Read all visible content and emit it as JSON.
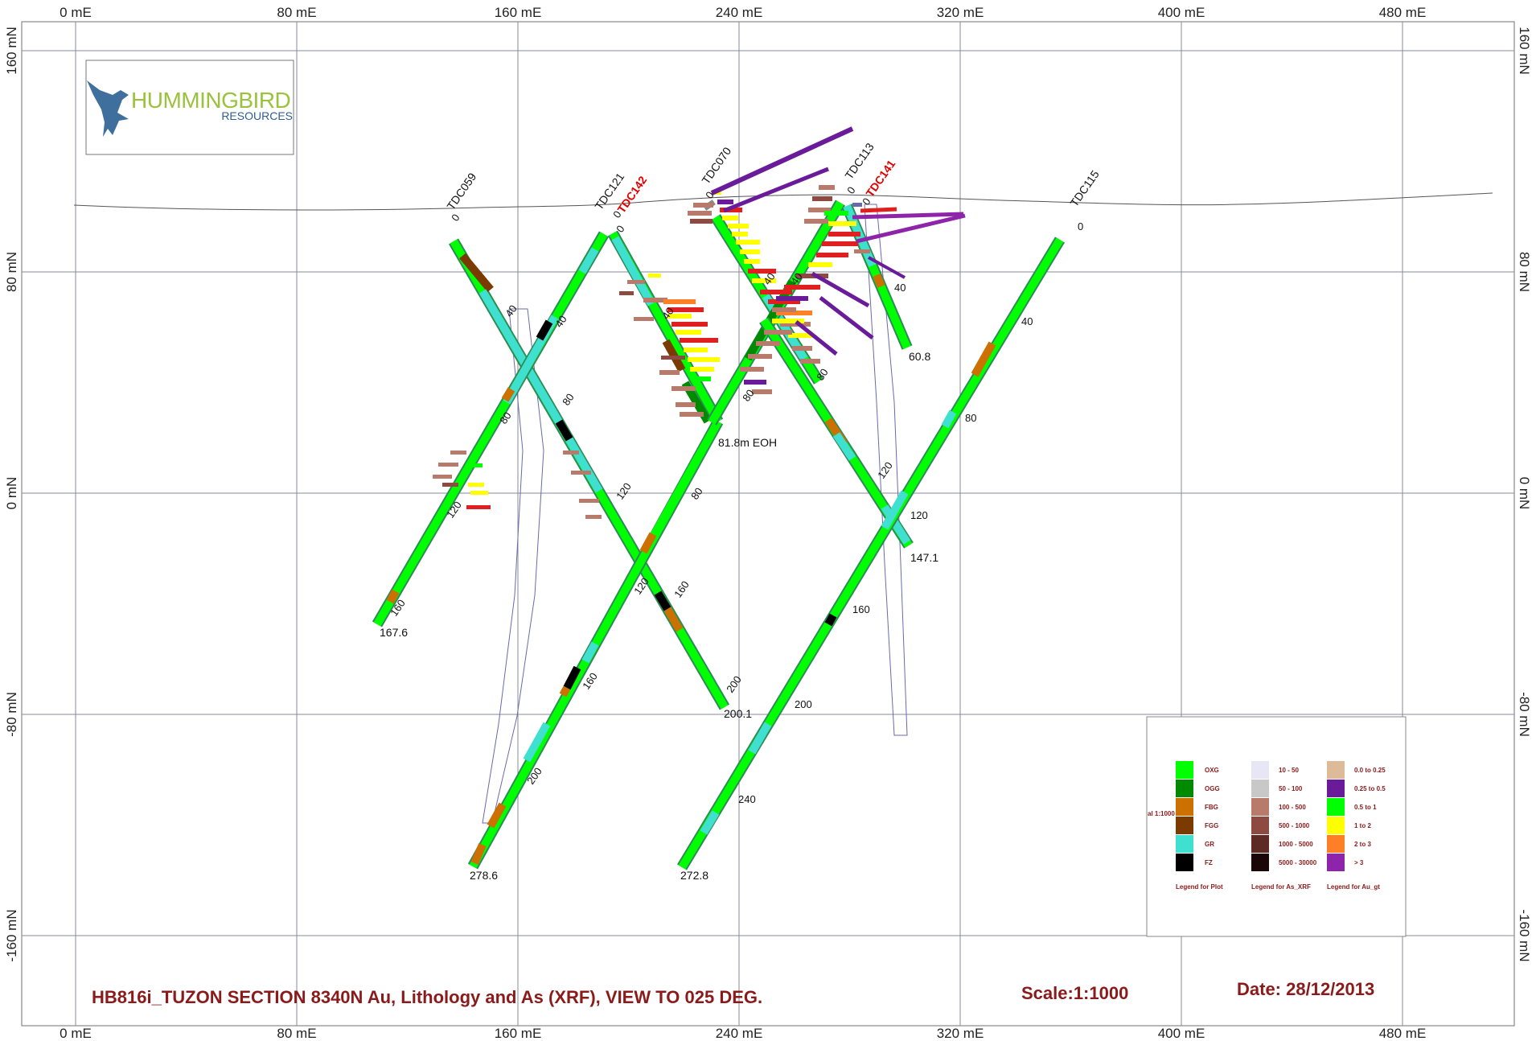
{
  "axes": {
    "x_labels": [
      "0 mE",
      "80 mE",
      "160 mE",
      "240 mE",
      "320 mE",
      "400 mE",
      "480 mE"
    ],
    "y_labels": [
      "160 mN",
      "80 mN",
      "0 mN",
      "-80 mN",
      "-160 mN"
    ]
  },
  "logo": {
    "brand": "HUMMINGBIRD",
    "sub": "RESOURCES"
  },
  "holes": [
    {
      "name": "TDC059",
      "red": false,
      "ticks": [
        "0",
        "40",
        "80",
        "120",
        "160"
      ],
      "eoh": "167.6"
    },
    {
      "name": "TDC121",
      "red": false,
      "ticks": [
        "0",
        "40",
        "80",
        "120",
        "160",
        "200"
      ],
      "eoh": "200.1"
    },
    {
      "name": "TDC142",
      "red": true,
      "ticks": [
        "0",
        "40",
        "80",
        "120",
        "160",
        "200",
        "240"
      ],
      "eoh": "278.6"
    },
    {
      "name": "TDC070",
      "red": false,
      "ticks": [
        "0",
        "40",
        "80"
      ],
      "eoh": "81.8m EOH"
    },
    {
      "name": "TDC113",
      "red": false,
      "ticks": [
        "0",
        "40",
        "80",
        "120"
      ],
      "eoh": "147.1"
    },
    {
      "name": "TDC141",
      "red": true,
      "ticks": [
        "0",
        "40"
      ],
      "eoh": "60.8"
    },
    {
      "name": "TDC115",
      "red": false,
      "ticks": [
        "0",
        "40",
        "80",
        "120",
        "160",
        "200",
        "240"
      ],
      "eoh": "272.8"
    }
  ],
  "legend": {
    "lithology": [
      {
        "label": "OXG",
        "color": "#00ff00"
      },
      {
        "label": "OGG",
        "color": "#008a00"
      },
      {
        "label": "FBG",
        "color": "#cc7000"
      },
      {
        "label": "FGG",
        "color": "#7a3a00"
      },
      {
        "label": "GR",
        "color": "#40e0d0"
      },
      {
        "label": "FZ",
        "color": "#000000"
      }
    ],
    "as_xrf": [
      {
        "label": "10 - 50",
        "color": "#e6e6f5"
      },
      {
        "label": "50 - 100",
        "color": "#c8c8c8"
      },
      {
        "label": "100 - 500",
        "color": "#b87a6a"
      },
      {
        "label": "500 - 1000",
        "color": "#8c4a40"
      },
      {
        "label": "1000 - 5000",
        "color": "#5e2a24"
      },
      {
        "label": "5000 - 30000",
        "color": "#1a0606"
      }
    ],
    "au_gt": [
      {
        "label": "0.0 to 0.25",
        "color": "#ddbb99"
      },
      {
        "label": "0.25 to 0.5",
        "color": "#6a1b9a"
      },
      {
        "label": "0.5 to 1",
        "color": "#00ff00"
      },
      {
        "label": "1 to 2",
        "color": "#ffff00"
      },
      {
        "label": "2 to 3",
        "color": "#ff7f27"
      },
      {
        "label": "> 3",
        "color": "#8e24aa"
      }
    ],
    "captions": [
      "Legend for Plot",
      "Legend for As_XRF",
      "Legend for Au_gt"
    ],
    "scale_note": "al 1:1000"
  },
  "footer": {
    "title": "HB816i_TUZON SECTION 8340N Au, Lithology and As (XRF), VIEW TO 025 DEG.",
    "scale": "Scale:1:1000",
    "date": "Date: 28/12/2013"
  }
}
